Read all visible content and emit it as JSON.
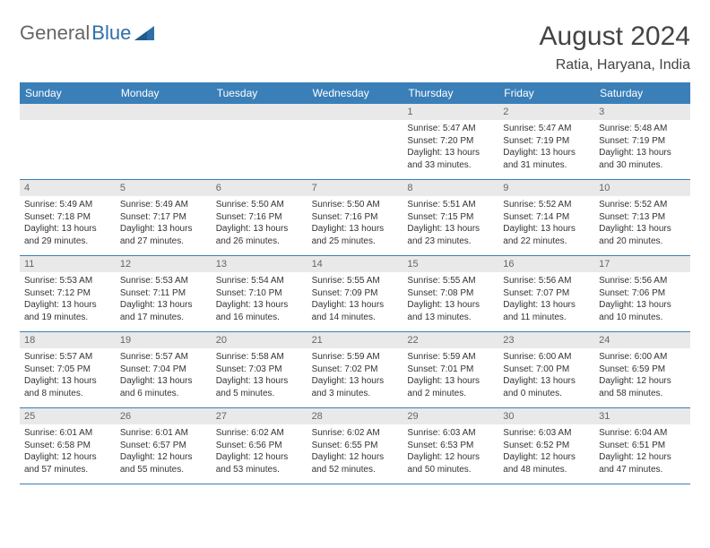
{
  "brand": {
    "part1": "General",
    "part2": "Blue"
  },
  "header": {
    "month_title": "August 2024",
    "location": "Ratia, Haryana, India"
  },
  "colors": {
    "header_bar": "#3a7fb8",
    "day_head_bg": "#e9e9e9",
    "logo_accent": "#2f6fa8",
    "text": "#333333"
  },
  "dow": [
    "Sunday",
    "Monday",
    "Tuesday",
    "Wednesday",
    "Thursday",
    "Friday",
    "Saturday"
  ],
  "weeks": [
    [
      {
        "n": "",
        "empty": true
      },
      {
        "n": "",
        "empty": true
      },
      {
        "n": "",
        "empty": true
      },
      {
        "n": "",
        "empty": true
      },
      {
        "n": "1",
        "sr": "Sunrise: 5:47 AM",
        "ss": "Sunset: 7:20 PM",
        "dl1": "Daylight: 13 hours",
        "dl2": "and 33 minutes."
      },
      {
        "n": "2",
        "sr": "Sunrise: 5:47 AM",
        "ss": "Sunset: 7:19 PM",
        "dl1": "Daylight: 13 hours",
        "dl2": "and 31 minutes."
      },
      {
        "n": "3",
        "sr": "Sunrise: 5:48 AM",
        "ss": "Sunset: 7:19 PM",
        "dl1": "Daylight: 13 hours",
        "dl2": "and 30 minutes."
      }
    ],
    [
      {
        "n": "4",
        "sr": "Sunrise: 5:49 AM",
        "ss": "Sunset: 7:18 PM",
        "dl1": "Daylight: 13 hours",
        "dl2": "and 29 minutes."
      },
      {
        "n": "5",
        "sr": "Sunrise: 5:49 AM",
        "ss": "Sunset: 7:17 PM",
        "dl1": "Daylight: 13 hours",
        "dl2": "and 27 minutes."
      },
      {
        "n": "6",
        "sr": "Sunrise: 5:50 AM",
        "ss": "Sunset: 7:16 PM",
        "dl1": "Daylight: 13 hours",
        "dl2": "and 26 minutes."
      },
      {
        "n": "7",
        "sr": "Sunrise: 5:50 AM",
        "ss": "Sunset: 7:16 PM",
        "dl1": "Daylight: 13 hours",
        "dl2": "and 25 minutes."
      },
      {
        "n": "8",
        "sr": "Sunrise: 5:51 AM",
        "ss": "Sunset: 7:15 PM",
        "dl1": "Daylight: 13 hours",
        "dl2": "and 23 minutes."
      },
      {
        "n": "9",
        "sr": "Sunrise: 5:52 AM",
        "ss": "Sunset: 7:14 PM",
        "dl1": "Daylight: 13 hours",
        "dl2": "and 22 minutes."
      },
      {
        "n": "10",
        "sr": "Sunrise: 5:52 AM",
        "ss": "Sunset: 7:13 PM",
        "dl1": "Daylight: 13 hours",
        "dl2": "and 20 minutes."
      }
    ],
    [
      {
        "n": "11",
        "sr": "Sunrise: 5:53 AM",
        "ss": "Sunset: 7:12 PM",
        "dl1": "Daylight: 13 hours",
        "dl2": "and 19 minutes."
      },
      {
        "n": "12",
        "sr": "Sunrise: 5:53 AM",
        "ss": "Sunset: 7:11 PM",
        "dl1": "Daylight: 13 hours",
        "dl2": "and 17 minutes."
      },
      {
        "n": "13",
        "sr": "Sunrise: 5:54 AM",
        "ss": "Sunset: 7:10 PM",
        "dl1": "Daylight: 13 hours",
        "dl2": "and 16 minutes."
      },
      {
        "n": "14",
        "sr": "Sunrise: 5:55 AM",
        "ss": "Sunset: 7:09 PM",
        "dl1": "Daylight: 13 hours",
        "dl2": "and 14 minutes."
      },
      {
        "n": "15",
        "sr": "Sunrise: 5:55 AM",
        "ss": "Sunset: 7:08 PM",
        "dl1": "Daylight: 13 hours",
        "dl2": "and 13 minutes."
      },
      {
        "n": "16",
        "sr": "Sunrise: 5:56 AM",
        "ss": "Sunset: 7:07 PM",
        "dl1": "Daylight: 13 hours",
        "dl2": "and 11 minutes."
      },
      {
        "n": "17",
        "sr": "Sunrise: 5:56 AM",
        "ss": "Sunset: 7:06 PM",
        "dl1": "Daylight: 13 hours",
        "dl2": "and 10 minutes."
      }
    ],
    [
      {
        "n": "18",
        "sr": "Sunrise: 5:57 AM",
        "ss": "Sunset: 7:05 PM",
        "dl1": "Daylight: 13 hours",
        "dl2": "and 8 minutes."
      },
      {
        "n": "19",
        "sr": "Sunrise: 5:57 AM",
        "ss": "Sunset: 7:04 PM",
        "dl1": "Daylight: 13 hours",
        "dl2": "and 6 minutes."
      },
      {
        "n": "20",
        "sr": "Sunrise: 5:58 AM",
        "ss": "Sunset: 7:03 PM",
        "dl1": "Daylight: 13 hours",
        "dl2": "and 5 minutes."
      },
      {
        "n": "21",
        "sr": "Sunrise: 5:59 AM",
        "ss": "Sunset: 7:02 PM",
        "dl1": "Daylight: 13 hours",
        "dl2": "and 3 minutes."
      },
      {
        "n": "22",
        "sr": "Sunrise: 5:59 AM",
        "ss": "Sunset: 7:01 PM",
        "dl1": "Daylight: 13 hours",
        "dl2": "and 2 minutes."
      },
      {
        "n": "23",
        "sr": "Sunrise: 6:00 AM",
        "ss": "Sunset: 7:00 PM",
        "dl1": "Daylight: 13 hours",
        "dl2": "and 0 minutes."
      },
      {
        "n": "24",
        "sr": "Sunrise: 6:00 AM",
        "ss": "Sunset: 6:59 PM",
        "dl1": "Daylight: 12 hours",
        "dl2": "and 58 minutes."
      }
    ],
    [
      {
        "n": "25",
        "sr": "Sunrise: 6:01 AM",
        "ss": "Sunset: 6:58 PM",
        "dl1": "Daylight: 12 hours",
        "dl2": "and 57 minutes."
      },
      {
        "n": "26",
        "sr": "Sunrise: 6:01 AM",
        "ss": "Sunset: 6:57 PM",
        "dl1": "Daylight: 12 hours",
        "dl2": "and 55 minutes."
      },
      {
        "n": "27",
        "sr": "Sunrise: 6:02 AM",
        "ss": "Sunset: 6:56 PM",
        "dl1": "Daylight: 12 hours",
        "dl2": "and 53 minutes."
      },
      {
        "n": "28",
        "sr": "Sunrise: 6:02 AM",
        "ss": "Sunset: 6:55 PM",
        "dl1": "Daylight: 12 hours",
        "dl2": "and 52 minutes."
      },
      {
        "n": "29",
        "sr": "Sunrise: 6:03 AM",
        "ss": "Sunset: 6:53 PM",
        "dl1": "Daylight: 12 hours",
        "dl2": "and 50 minutes."
      },
      {
        "n": "30",
        "sr": "Sunrise: 6:03 AM",
        "ss": "Sunset: 6:52 PM",
        "dl1": "Daylight: 12 hours",
        "dl2": "and 48 minutes."
      },
      {
        "n": "31",
        "sr": "Sunrise: 6:04 AM",
        "ss": "Sunset: 6:51 PM",
        "dl1": "Daylight: 12 hours",
        "dl2": "and 47 minutes."
      }
    ]
  ]
}
